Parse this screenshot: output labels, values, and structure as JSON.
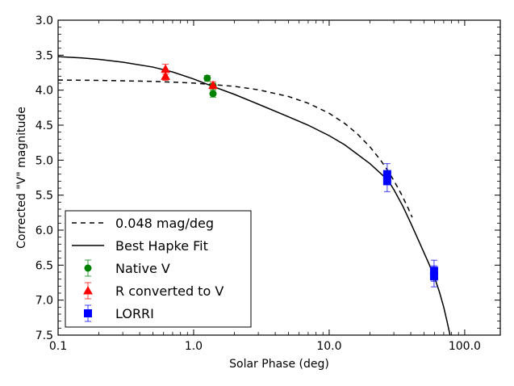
{
  "chart_data": {
    "type": "scatter",
    "title": "",
    "xlabel": "Solar Phase (deg)",
    "ylabel": "Corrected \"V\" magnitude",
    "xscale": "log",
    "xlim": [
      0.1,
      183
    ],
    "ylim": [
      7.5,
      3.0
    ],
    "y_inverted": true,
    "grid": false,
    "legend_position": "lower-left",
    "x_ticks": [
      {
        "value": 0.1,
        "label": "0.1"
      },
      {
        "value": 1.0,
        "label": "1.0"
      },
      {
        "value": 10.0,
        "label": "10.0"
      },
      {
        "value": 100.0,
        "label": "100.0"
      }
    ],
    "y_ticks": [
      {
        "value": 3.0,
        "label": "3.0"
      },
      {
        "value": 3.5,
        "label": "3.5"
      },
      {
        "value": 4.0,
        "label": "4.0"
      },
      {
        "value": 4.5,
        "label": "4.5"
      },
      {
        "value": 5.0,
        "label": "5.0"
      },
      {
        "value": 5.5,
        "label": "5.5"
      },
      {
        "value": 6.0,
        "label": "6.0"
      },
      {
        "value": 6.5,
        "label": "6.5"
      },
      {
        "value": 7.0,
        "label": "7.0"
      },
      {
        "value": 7.5,
        "label": "7.5"
      }
    ],
    "series": [
      {
        "name": "0.048 mag/deg",
        "kind": "line",
        "style": "dashed",
        "color": "#000000",
        "x": [
          0.1,
          0.2,
          0.5,
          1.0,
          2.0,
          3.0,
          5.0,
          7.0,
          10.0,
          13.0,
          16.0,
          20.0,
          24.0,
          27.0,
          30.0,
          34.0,
          38.0,
          41.0
        ],
        "y": [
          3.855,
          3.86,
          3.874,
          3.898,
          3.946,
          3.994,
          4.09,
          4.186,
          4.33,
          4.474,
          4.618,
          4.81,
          5.002,
          5.146,
          5.29,
          5.482,
          5.674,
          5.818
        ]
      },
      {
        "name": "Best Hapke Fit",
        "kind": "line",
        "style": "solid",
        "color": "#000000",
        "x": [
          0.1,
          0.15,
          0.2,
          0.3,
          0.5,
          0.7,
          1.0,
          1.4,
          2.0,
          3.0,
          5.0,
          7.0,
          10.0,
          13.0,
          16.0,
          20.0,
          24.0,
          27.0,
          30.0,
          35.0,
          40.0,
          45.0,
          50.0,
          55.0,
          60.0,
          65.0,
          70.0,
          74.0,
          78.0
        ],
        "y": [
          3.52,
          3.54,
          3.56,
          3.6,
          3.67,
          3.74,
          3.84,
          3.95,
          4.06,
          4.2,
          4.38,
          4.5,
          4.65,
          4.78,
          4.91,
          5.05,
          5.19,
          5.28,
          5.42,
          5.66,
          5.9,
          6.12,
          6.32,
          6.5,
          6.68,
          6.88,
          7.1,
          7.3,
          7.5
        ]
      },
      {
        "name": "Native V",
        "kind": "errorbar",
        "marker": "circle",
        "color": "#008000",
        "points": [
          {
            "x": 1.26,
            "y": 3.83,
            "yerr": 0.04
          },
          {
            "x": 1.39,
            "y": 3.94,
            "yerr": 0.04
          },
          {
            "x": 1.39,
            "y": 4.05,
            "yerr": 0.05
          }
        ]
      },
      {
        "name": "R converted to V",
        "kind": "errorbar",
        "marker": "triangle",
        "color": "#ff0000",
        "points": [
          {
            "x": 0.62,
            "y": 3.7,
            "yerr": 0.07
          },
          {
            "x": 0.62,
            "y": 3.8,
            "yerr": 0.06
          },
          {
            "x": 1.39,
            "y": 3.93,
            "yerr": 0.05
          }
        ]
      },
      {
        "name": "LORRI",
        "kind": "errorbar",
        "marker": "square",
        "color": "#0000ff",
        "points": [
          {
            "x": 26.8,
            "y": 5.2,
            "yerr": 0.15
          },
          {
            "x": 26.8,
            "y": 5.3,
            "yerr": 0.15
          },
          {
            "x": 59.4,
            "y": 6.58,
            "yerr": 0.15
          },
          {
            "x": 59.4,
            "y": 6.66,
            "yerr": 0.15
          }
        ]
      }
    ],
    "legend": [
      {
        "label": "0.048 mag/deg",
        "symbol": "dashed-line",
        "color": "#000000"
      },
      {
        "label": "Best Hapke Fit",
        "symbol": "solid-line",
        "color": "#000000"
      },
      {
        "label": "Native V",
        "symbol": "circle",
        "color": "#008000"
      },
      {
        "label": "R converted to V",
        "symbol": "triangle",
        "color": "#ff0000"
      },
      {
        "label": "LORRI",
        "symbol": "square",
        "color": "#0000ff"
      }
    ]
  }
}
